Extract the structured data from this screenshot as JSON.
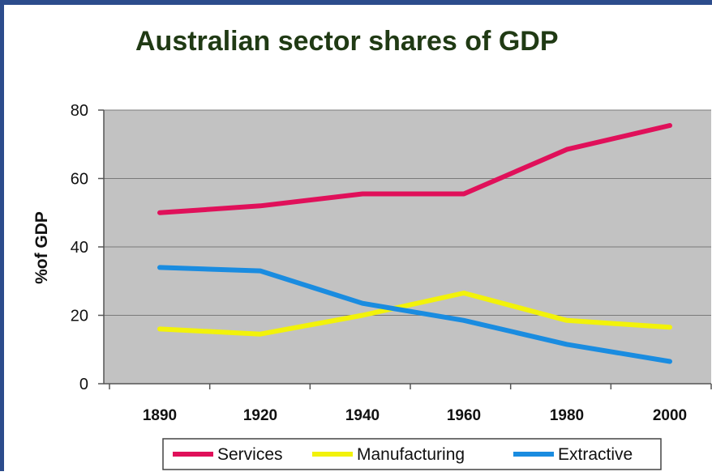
{
  "chart_data": {
    "type": "line",
    "title": "Australian sector shares of GDP",
    "xlabel": "",
    "ylabel": "%of GDP",
    "categories": [
      "1890",
      "1920",
      "1940",
      "1960",
      "1980",
      "2000"
    ],
    "ylim": [
      0,
      80
    ],
    "yticks": [
      "0",
      "20",
      "40",
      "60",
      "80"
    ],
    "grid": true,
    "legend_position": "bottom",
    "series": [
      {
        "name": "Services",
        "color": "#e0105a",
        "values": [
          50,
          52,
          55.5,
          55.5,
          68.5,
          75.5
        ]
      },
      {
        "name": "Manufacturing",
        "color": "#f2f20a",
        "values": [
          16,
          14.5,
          20,
          26.5,
          18.5,
          16.5
        ]
      },
      {
        "name": "Extractive",
        "color": "#1a8ce0",
        "values": [
          34,
          33,
          23.5,
          18.5,
          11.5,
          6.5
        ]
      }
    ],
    "plot_background": "#c2c2c2"
  }
}
